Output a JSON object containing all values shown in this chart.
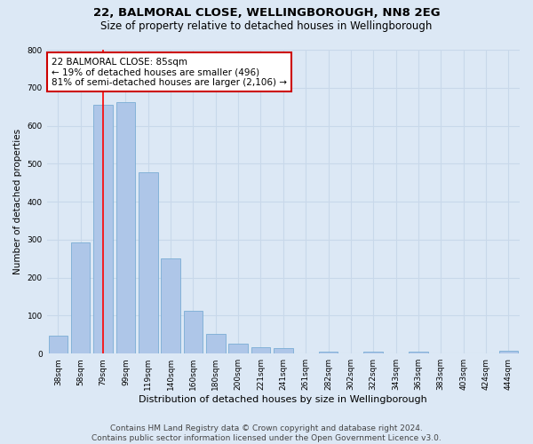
{
  "title1": "22, BALMORAL CLOSE, WELLINGBOROUGH, NN8 2EG",
  "title2": "Size of property relative to detached houses in Wellingborough",
  "xlabel": "Distribution of detached houses by size in Wellingborough",
  "ylabel": "Number of detached properties",
  "categories": [
    "38sqm",
    "58sqm",
    "79sqm",
    "99sqm",
    "119sqm",
    "140sqm",
    "160sqm",
    "180sqm",
    "200sqm",
    "221sqm",
    "241sqm",
    "261sqm",
    "282sqm",
    "302sqm",
    "322sqm",
    "343sqm",
    "363sqm",
    "383sqm",
    "403sqm",
    "424sqm",
    "444sqm"
  ],
  "values": [
    47,
    293,
    655,
    663,
    478,
    250,
    113,
    52,
    27,
    17,
    15,
    0,
    6,
    0,
    5,
    0,
    5,
    0,
    0,
    0,
    7
  ],
  "bar_color": "#aec6e8",
  "bar_edge_color": "#7aadd4",
  "grid_color": "#c8d8ea",
  "background_color": "#dce8f5",
  "annotation_text": "22 BALMORAL CLOSE: 85sqm\n← 19% of detached houses are smaller (496)\n81% of semi-detached houses are larger (2,106) →",
  "vline_x": 2.0,
  "annotation_box_color": "#ffffff",
  "annotation_box_edge": "#cc0000",
  "ylim": [
    0,
    800
  ],
  "yticks": [
    0,
    100,
    200,
    300,
    400,
    500,
    600,
    700,
    800
  ],
  "footer": "Contains HM Land Registry data © Crown copyright and database right 2024.\nContains public sector information licensed under the Open Government Licence v3.0.",
  "title1_fontsize": 9.5,
  "title2_fontsize": 8.5,
  "xlabel_fontsize": 8,
  "ylabel_fontsize": 7.5,
  "tick_fontsize": 6.5,
  "footer_fontsize": 6.5,
  "annotation_fontsize": 7.5
}
